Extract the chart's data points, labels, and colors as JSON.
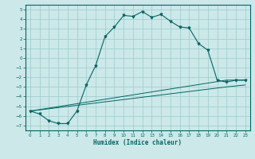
{
  "xlabel": "Humidex (Indice chaleur)",
  "ylabel": "",
  "bg_color": "#cce8e8",
  "grid_color": "#99cccc",
  "line_color": "#006666",
  "xlim": [
    -0.5,
    23.5
  ],
  "ylim": [
    -7.5,
    5.5
  ],
  "xticks": [
    0,
    1,
    2,
    3,
    4,
    5,
    6,
    7,
    8,
    9,
    10,
    11,
    12,
    13,
    14,
    15,
    16,
    17,
    18,
    19,
    20,
    21,
    22,
    23
  ],
  "yticks": [
    -7,
    -6,
    -5,
    -4,
    -3,
    -2,
    -1,
    0,
    1,
    2,
    3,
    4,
    5
  ],
  "main_line_x": [
    0,
    1,
    2,
    3,
    4,
    5,
    6,
    7,
    8,
    9,
    10,
    11,
    12,
    13,
    14,
    15,
    16,
    17,
    18,
    19,
    20,
    21,
    22,
    23
  ],
  "main_line_y": [
    -5.5,
    -5.8,
    -6.5,
    -6.8,
    -6.8,
    -5.5,
    -2.8,
    -0.8,
    2.2,
    3.2,
    4.4,
    4.3,
    4.8,
    4.2,
    4.5,
    3.8,
    3.2,
    3.1,
    1.5,
    0.8,
    -2.3,
    -2.5,
    -2.3,
    -2.3
  ],
  "line2_x": [
    0,
    21,
    23
  ],
  "line2_y": [
    -5.5,
    -2.3,
    -2.3
  ],
  "line3_x": [
    0,
    21,
    23
  ],
  "line3_y": [
    -5.5,
    -3.0,
    -2.8
  ]
}
